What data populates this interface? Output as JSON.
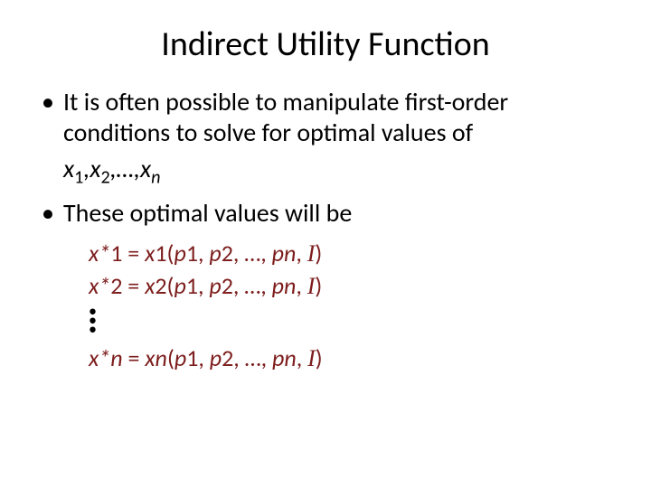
{
  "type": "presentation-slide",
  "background_color": "#ffffff",
  "title": {
    "text": "Indirect Utility Function",
    "fontsize": 38,
    "color": "#000000",
    "align": "center"
  },
  "body_fontsize": 28,
  "body_color": "#000000",
  "equation_color": "#7d1d1d",
  "equation_fontsize": 26,
  "bullets": [
    {
      "text": "It is often possible to manipulate first-order conditions to solve for optimal values of",
      "sub_line_html": "x<sub>1</sub>,x<sub>2</sub>,…,x<sub>n</sub>"
    },
    {
      "text": "These optimal values will be"
    }
  ],
  "equations": [
    "x*1 = x1(p1, p2, …, pn, I)",
    "x*2 = x2(p1, p2, …, pn, I)",
    "⋮",
    "x*n = xn(p1, p2, …, pn, I)"
  ]
}
